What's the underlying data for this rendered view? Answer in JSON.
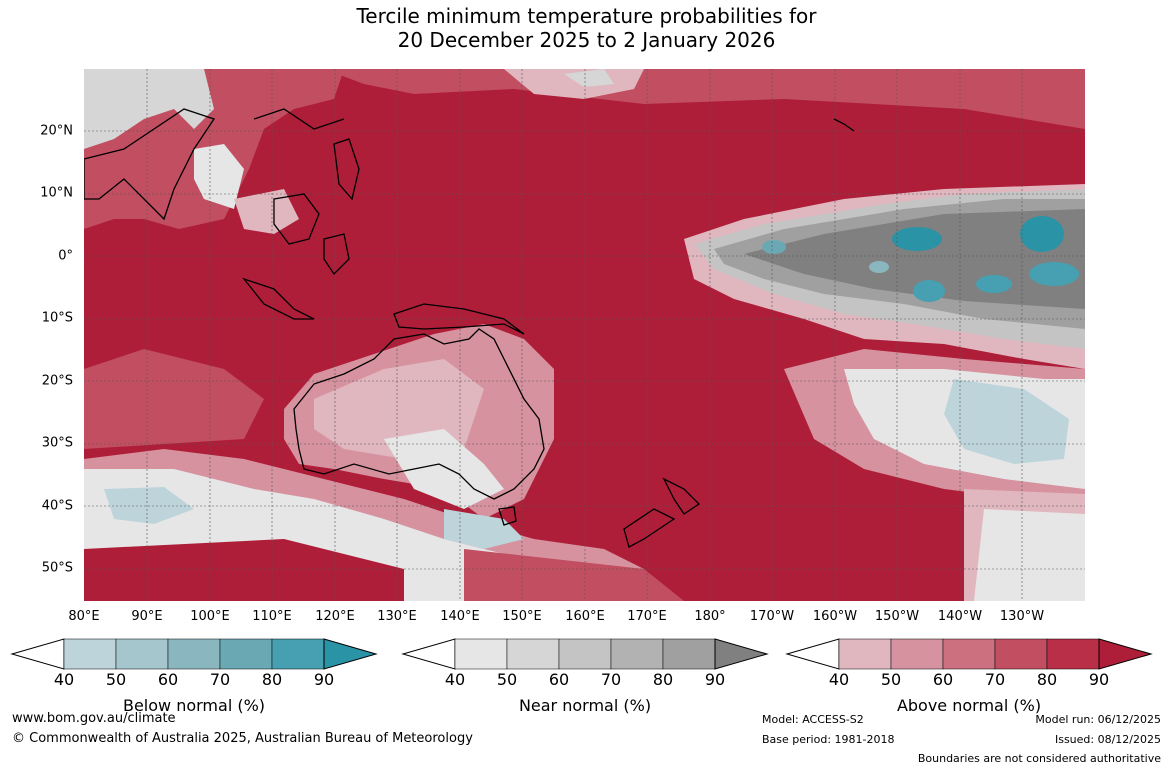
{
  "title": {
    "line1": "Tercile minimum temperature probabilities for",
    "line2": "20 December 2025 to 2 January 2026"
  },
  "map": {
    "lat_labels": [
      "20°N",
      "10°N",
      "0°",
      "10°S",
      "20°S",
      "30°S",
      "40°S",
      "50°S"
    ],
    "lon_labels": [
      "80°E",
      "90°E",
      "100°E",
      "110°E",
      "120°E",
      "130°E",
      "140°E",
      "150°E",
      "160°E",
      "170°E",
      "180°",
      "170°W",
      "160°W",
      "150°W",
      "140°W",
      "130°W"
    ],
    "colors": {
      "above": [
        "#e0b7bf",
        "#d6929f",
        "#cc7080",
        "#c24e62",
        "#b92f47",
        "#ae1e39"
      ],
      "near": [
        "#e6e6e6",
        "#d6d6d6",
        "#c4c4c4",
        "#b2b2b2",
        "#a0a0a0",
        "#808080"
      ],
      "below": [
        "#bdd4db",
        "#a4c6cc",
        "#8ab7bf",
        "#6aa9b4",
        "#46a0b1",
        "#2a93a6"
      ]
    }
  },
  "colorbars": [
    {
      "label": "Below normal (%)",
      "ticks": [
        "40",
        "50",
        "60",
        "70",
        "80",
        "90"
      ]
    },
    {
      "label": "Near normal (%)",
      "ticks": [
        "40",
        "50",
        "60",
        "70",
        "80",
        "90"
      ]
    },
    {
      "label": "Above normal (%)",
      "ticks": [
        "40",
        "50",
        "60",
        "70",
        "80",
        "90"
      ]
    }
  ],
  "footer": {
    "website": "www.bom.gov.au/climate",
    "copyright": "© Commonwealth of Australia 2025, Australian Bureau of Meteorology",
    "model": "Model: ACCESS-S2",
    "base_period": "Base period: 1981-2018",
    "model_run": "Model run: 06/12/2025",
    "issued": "Issued: 08/12/2025",
    "disclaimer": "Boundaries are not considered authoritative"
  }
}
